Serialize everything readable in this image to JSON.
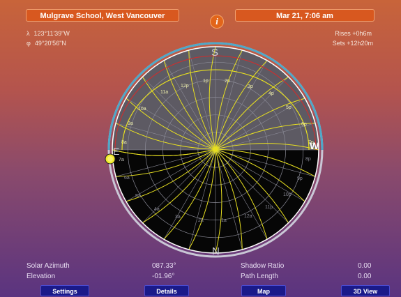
{
  "header": {
    "location": "Mulgrave School, West Vancouver",
    "datetime": "Mar 21, 7:06 am",
    "info_label": "i"
  },
  "coordinates": {
    "lon_symbol": "λ",
    "lon_value": "123°11'39\"W",
    "lat_symbol": "φ",
    "lat_value": "49°20'56\"N"
  },
  "sun_times": {
    "rises": "Rises +0h6m",
    "sets": "Sets +12h20m"
  },
  "compass": {
    "top": "S",
    "bottom": "N",
    "left": "E",
    "right": "W"
  },
  "hour_labels_upper": [
    "10a",
    "11a",
    "12p",
    "1p",
    "2p",
    "3p",
    "4p",
    "5p",
    "6p",
    "9a",
    "8a",
    "7a",
    "7p"
  ],
  "hour_labels_lower": [
    "7a",
    "6a",
    "5a",
    "4a",
    "3a",
    "2a",
    "1a",
    "12a",
    "11p",
    "10p",
    "9p",
    "8p"
  ],
  "stats": {
    "solar_azimuth_label": "Solar Azimuth",
    "solar_azimuth_value": "087.33°",
    "elevation_label": "Elevation",
    "elevation_value": "-01.96°",
    "shadow_ratio_label": "Shadow Ratio",
    "shadow_ratio_value": "0.00",
    "path_length_label": "Path Length",
    "path_length_value": "0.00"
  },
  "buttons": {
    "settings": "Settings",
    "details": "Details",
    "map": "Map",
    "view3d": "3D View"
  },
  "colors": {
    "accent_orange": "#d8581f",
    "button_blue": "#1a1a8a",
    "sun_path_yellow": "#e8e020",
    "equinox_red": "#c83030"
  }
}
